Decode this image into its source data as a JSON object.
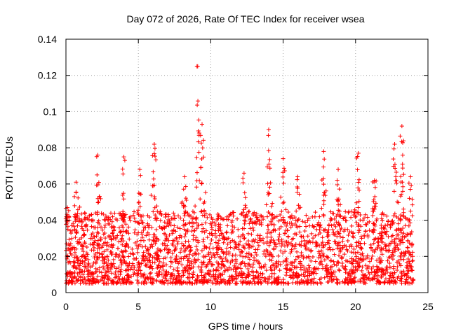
{
  "chart_data": {
    "type": "scatter",
    "title": "Day 072 of 2026, Rate Of TEC Index for receiver wsea",
    "xlabel": "GPS time / hours",
    "ylabel": "ROTI / TECUs",
    "xlim": [
      0,
      25
    ],
    "ylim": [
      0,
      0.14
    ],
    "x_ticks": [
      0,
      5,
      10,
      15,
      20,
      25
    ],
    "x_tick_labels": [
      "0",
      "5",
      "10",
      "15",
      "20",
      "25"
    ],
    "y_ticks": [
      0,
      0.02,
      0.04,
      0.06,
      0.08,
      0.1,
      0.12,
      0.14
    ],
    "y_tick_labels": [
      "0",
      "0.02",
      "0.04",
      "0.06",
      "0.08",
      "0.1",
      "0.12",
      "0.14"
    ],
    "grid": true,
    "marker": "plus",
    "color": "#ff0000",
    "series": [
      {
        "name": "ROTI",
        "x_range_hours": [
          0,
          24
        ],
        "typical_range": [
          0.005,
          0.045
        ],
        "peaks": [
          {
            "x": 0.1,
            "y": 0.047
          },
          {
            "x": 0.7,
            "y": 0.061
          },
          {
            "x": 2.2,
            "y": 0.076
          },
          {
            "x": 4.0,
            "y": 0.075
          },
          {
            "x": 5.1,
            "y": 0.068
          },
          {
            "x": 6.1,
            "y": 0.082
          },
          {
            "x": 8.2,
            "y": 0.064
          },
          {
            "x": 9.1,
            "y": 0.125
          },
          {
            "x": 9.4,
            "y": 0.093
          },
          {
            "x": 12.3,
            "y": 0.066
          },
          {
            "x": 14.0,
            "y": 0.09
          },
          {
            "x": 15.0,
            "y": 0.074
          },
          {
            "x": 16.0,
            "y": 0.064
          },
          {
            "x": 17.8,
            "y": 0.078
          },
          {
            "x": 18.8,
            "y": 0.068
          },
          {
            "x": 20.2,
            "y": 0.077
          },
          {
            "x": 21.3,
            "y": 0.062
          },
          {
            "x": 22.7,
            "y": 0.082
          },
          {
            "x": 23.2,
            "y": 0.092
          },
          {
            "x": 23.8,
            "y": 0.064
          }
        ]
      }
    ]
  }
}
